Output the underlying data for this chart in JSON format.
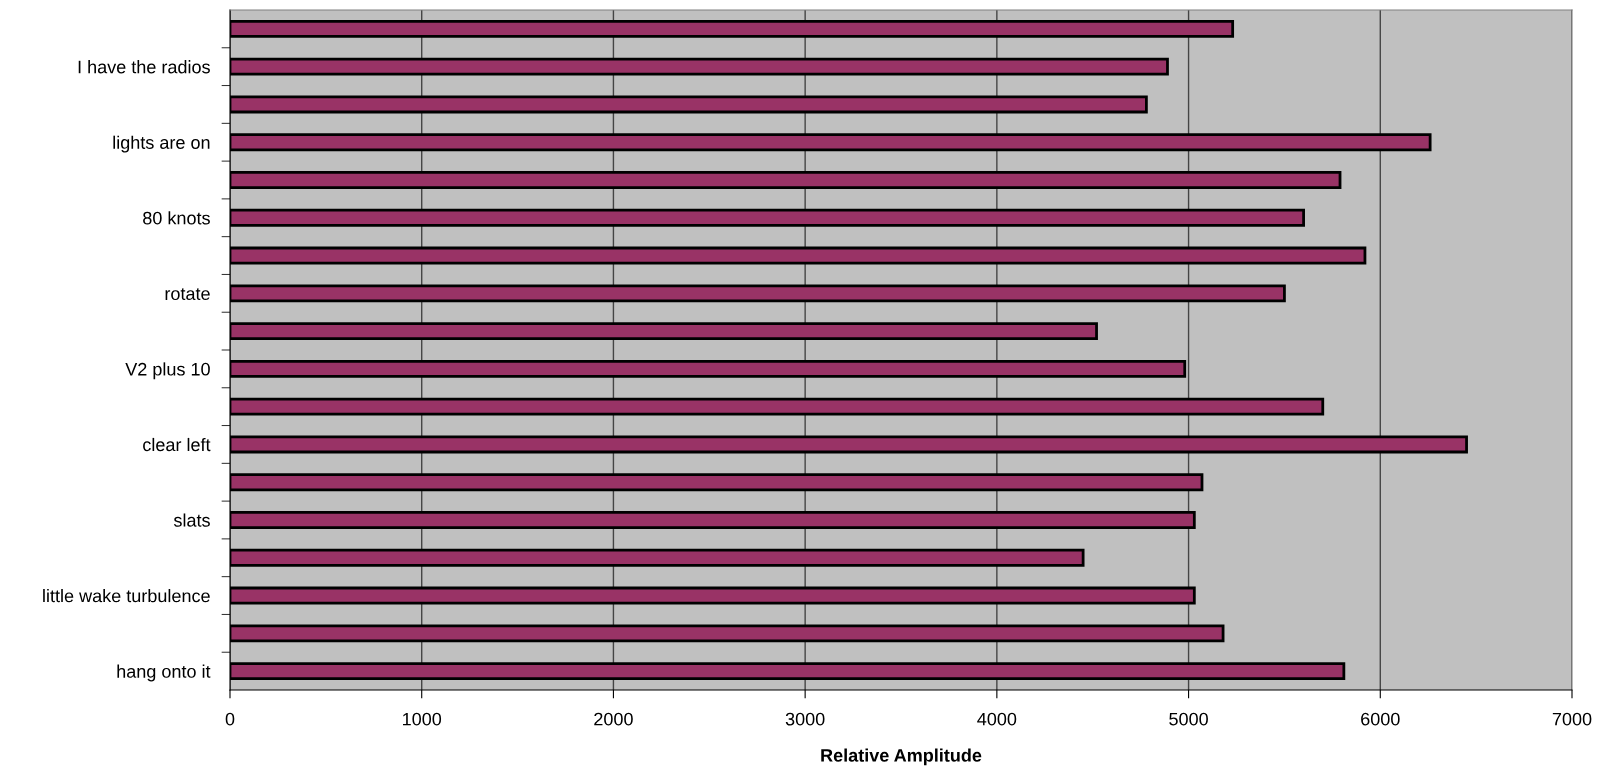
{
  "chart_data": {
    "type": "bar",
    "orientation": "horizontal",
    "xlabel": "Relative Amplitude",
    "categories": [
      null,
      "I have the radios",
      null,
      "lights are on",
      null,
      "80 knots",
      null,
      "rotate",
      null,
      "V2 plus 10",
      null,
      "clear left",
      null,
      "slats",
      null,
      "little wake turbulence",
      null,
      "hang onto it"
    ],
    "values": [
      5230,
      4890,
      4780,
      6260,
      5790,
      5600,
      5920,
      5500,
      4520,
      4980,
      5700,
      6450,
      5070,
      5030,
      4450,
      5030,
      5180,
      5810
    ],
    "color": "#993366",
    "xlim": [
      0,
      7000
    ],
    "xticks": [
      0,
      1000,
      2000,
      3000,
      4000,
      5000,
      6000,
      7000
    ],
    "grid": "x"
  }
}
